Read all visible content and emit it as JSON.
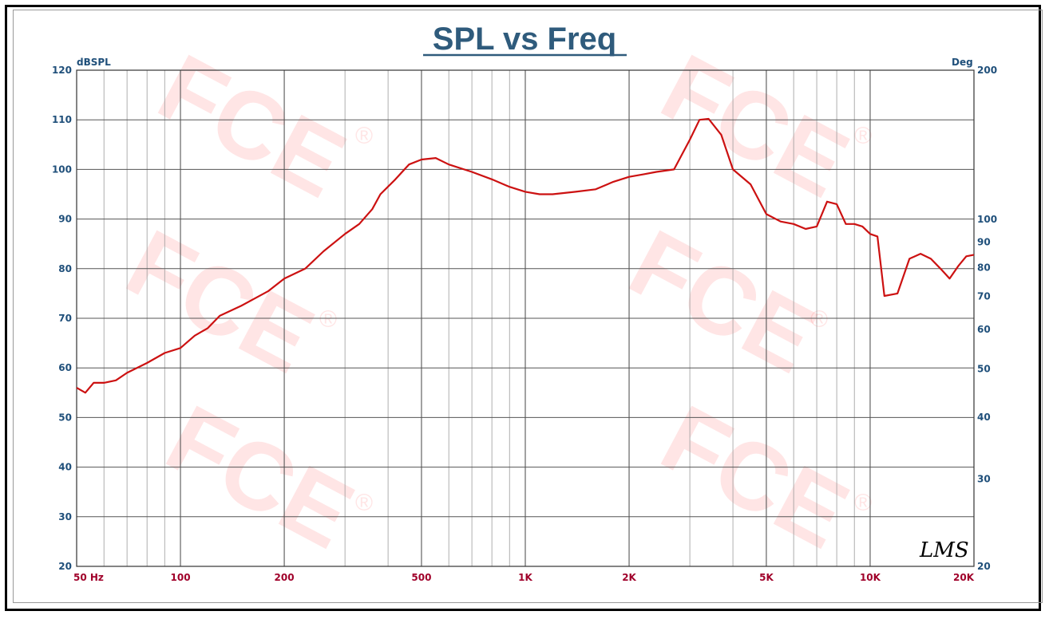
{
  "chart_data": {
    "type": "line",
    "title": "SPL vs Freq",
    "ylabel": "dBSPL",
    "y2label": "Deg",
    "xscale": "log",
    "xlim": [
      50,
      20000
    ],
    "ylim": [
      20,
      120
    ],
    "y2lim": [
      20,
      200
    ],
    "y2scale": "log",
    "grid": true,
    "x_ticks": [
      {
        "value": 50,
        "label": "50  Hz"
      },
      {
        "value": 100,
        "label": "100"
      },
      {
        "value": 200,
        "label": "200"
      },
      {
        "value": 500,
        "label": "500"
      },
      {
        "value": 1000,
        "label": "1K"
      },
      {
        "value": 2000,
        "label": "2K"
      },
      {
        "value": 5000,
        "label": "5K"
      },
      {
        "value": 10000,
        "label": "10K"
      },
      {
        "value": 20000,
        "label": "20K"
      }
    ],
    "y_ticks": [
      20,
      30,
      40,
      50,
      60,
      70,
      80,
      90,
      100,
      110,
      120
    ],
    "y2_ticks": [
      20,
      30,
      40,
      50,
      60,
      70,
      80,
      90,
      100,
      200
    ],
    "series": [
      {
        "color": "#cc1111",
        "x": [
          50,
          53,
          56,
          60,
          65,
          70,
          80,
          90,
          100,
          110,
          120,
          130,
          150,
          180,
          200,
          230,
          260,
          300,
          330,
          360,
          380,
          420,
          460,
          500,
          550,
          600,
          700,
          800,
          900,
          1000,
          1100,
          1200,
          1400,
          1600,
          1800,
          2000,
          2200,
          2400,
          2700,
          3000,
          3200,
          3400,
          3700,
          4000,
          4500,
          5000,
          5500,
          6000,
          6500,
          7000,
          7500,
          8000,
          8500,
          9000,
          9500,
          10000,
          10500,
          11000,
          12000,
          13000,
          14000,
          15000,
          16000,
          17000,
          18000,
          19000,
          20000
        ],
        "y": [
          56,
          55,
          57,
          57,
          57.5,
          59,
          61,
          63,
          64,
          66.5,
          68,
          70.5,
          72.5,
          75.5,
          78,
          80,
          83.5,
          87,
          89,
          92,
          95,
          98,
          101,
          102,
          102.3,
          101,
          99.5,
          98,
          96.5,
          95.5,
          95,
          95,
          95.5,
          96,
          97.5,
          98.5,
          99,
          99.5,
          100,
          106,
          110,
          110.2,
          107,
          100,
          97,
          91,
          89.5,
          89,
          88,
          88.5,
          93.5,
          93,
          89,
          89,
          88.5,
          87,
          86.5,
          74.5,
          75,
          82,
          83,
          82,
          80,
          78,
          80.5,
          82.5,
          82.8
        ]
      }
    ],
    "signature": "LMS"
  }
}
